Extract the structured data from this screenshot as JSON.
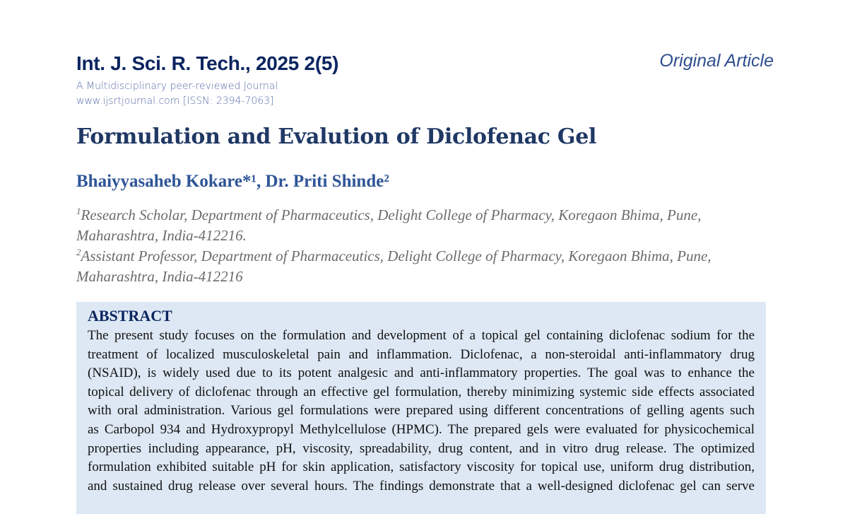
{
  "header": {
    "journal": "Int. J. Sci. R. Tech., 2025 2(5)",
    "tagline": "A Multidisciplinary peer-reviewed Journal",
    "website": "www.ijsrtjournal.com [ISSN: 2394-7063]",
    "article_type": "Original Article"
  },
  "title": "Formulation and Evalution of Diclofenac Gel",
  "authors": "Bhaiyyasaheb Kokare*¹, Dr. Priti Shinde²",
  "affiliations": [
    {
      "num": "1",
      "line1": "Research Scholar, Department of Pharmaceutics, Delight College of Pharmacy, Koregaon Bhima, Pune,",
      "line2": "Maharashtra, India-412216."
    },
    {
      "num": "2",
      "line1": "Assistant Professor, Department of Pharmaceutics, Delight College of Pharmacy, Koregaon Bhima, Pune,",
      "line2": "Maharashtra, India-412216"
    }
  ],
  "abstract": {
    "heading": "ABSTRACT",
    "lines": [
      "The present study focuses on the formulation and development of a topical gel containing diclofenac sodium for the",
      "treatment of localized musculoskeletal pain and inflammation. Diclofenac, a non-steroidal anti-inflammatory drug",
      "(NSAID), is widely used due to its potent analgesic and anti-inflammatory properties. The goal was to enhance the",
      "topical delivery of diclofenac through an effective gel formulation, thereby minimizing systemic side effects associated",
      "with oral administration. Various gel formulations were prepared using different concentrations of gelling agents such",
      "as Carbopol 934 and Hydroxypropyl Methylcellulose (HPMC). The prepared gels were evaluated for physicochemical",
      "properties including appearance, pH, viscosity, spreadability, drug content, and in vitro drug release. The optimized",
      "formulation exhibited suitable pH for skin application, satisfactory viscosity for topical use, uniform drug distribution,",
      "and sustained drug release over several hours. The findings demonstrate that a well-designed diclofenac gel can serve"
    ]
  }
}
